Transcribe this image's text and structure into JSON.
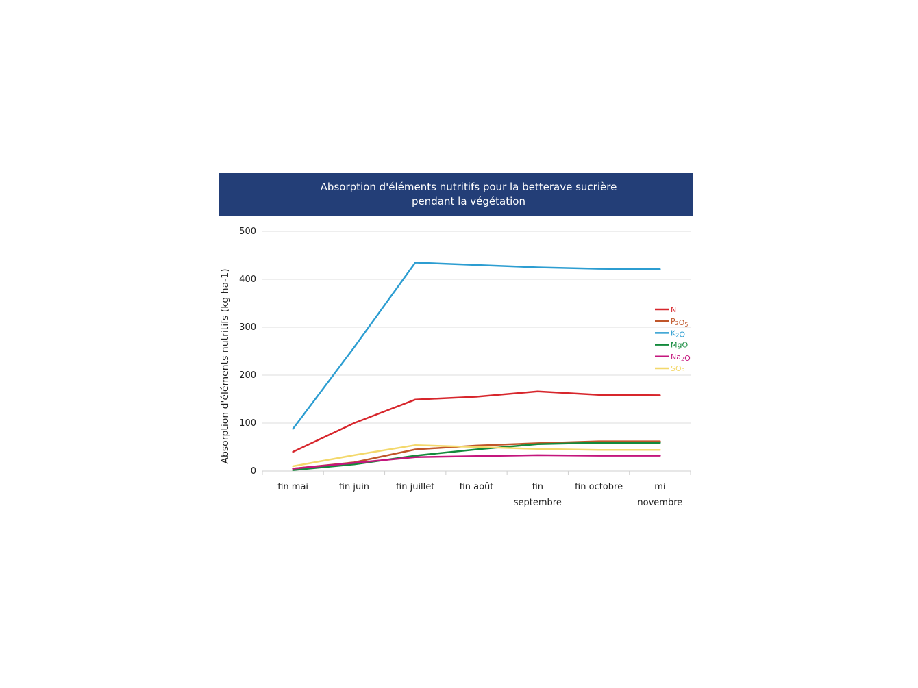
{
  "chart_data": {
    "type": "line",
    "title_line1": "Absorption d'éléments nutritifs pour la betterave sucrière",
    "title_line2": "pendant  la végétation",
    "xlabel": "",
    "ylabel": "Absorption d'éléments nutritifs (kg ha-1)",
    "ylim": [
      0,
      500
    ],
    "yticks": [
      0,
      100,
      200,
      300,
      400,
      500
    ],
    "grid": true,
    "legend_position": "right",
    "categories": [
      [
        "fin mai"
      ],
      [
        "fin juin"
      ],
      [
        "fin juillet"
      ],
      [
        "fin août"
      ],
      [
        "fin",
        "septembre"
      ],
      [
        "fin octobre"
      ],
      [
        "mi",
        "novembre"
      ]
    ],
    "series": [
      {
        "name": "N",
        "color": "#d7262c",
        "values": [
          40,
          100,
          149,
          155,
          166,
          159,
          158
        ]
      },
      {
        "name": "P2O5",
        "color": "#c0562a",
        "values": [
          5,
          18,
          45,
          53,
          58,
          62,
          62
        ]
      },
      {
        "name": "K2O",
        "color": "#2c9dd1",
        "values": [
          88,
          258,
          435,
          430,
          425,
          422,
          421
        ]
      },
      {
        "name": "MgO",
        "color": "#138a3c",
        "values": [
          2,
          14,
          32,
          45,
          56,
          59,
          59
        ]
      },
      {
        "name": "Na2O",
        "color": "#c4167d",
        "values": [
          5,
          17,
          29,
          31,
          33,
          32,
          32
        ]
      },
      {
        "name": "SO3",
        "color": "#f3d86b",
        "values": [
          10,
          33,
          54,
          50,
          46,
          44,
          44
        ]
      }
    ],
    "header_color": "#233e77"
  }
}
